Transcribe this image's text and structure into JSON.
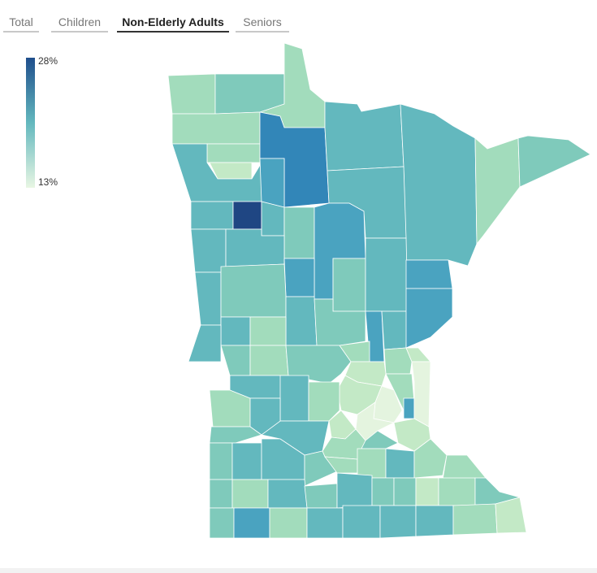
{
  "tabs": [
    {
      "label": "Total"
    },
    {
      "label": "Children"
    },
    {
      "label": "Non-Elderly Adults"
    },
    {
      "label": "Seniors"
    }
  ],
  "active_tab": 2,
  "legend": {
    "max_label": "28%",
    "min_label": "13%",
    "color_high": "#1f4e8c",
    "color_mid": "#63b8be",
    "color_low": "#e8f6e3"
  },
  "colors": {
    "c1": "#1f4683",
    "c2": "#3286b8",
    "c3": "#4aa3c0",
    "c4": "#63b8be",
    "c5": "#7fcabb",
    "c6": "#a2dcbc",
    "c7": "#c3e9c6",
    "c8": "#e4f4df"
  }
}
